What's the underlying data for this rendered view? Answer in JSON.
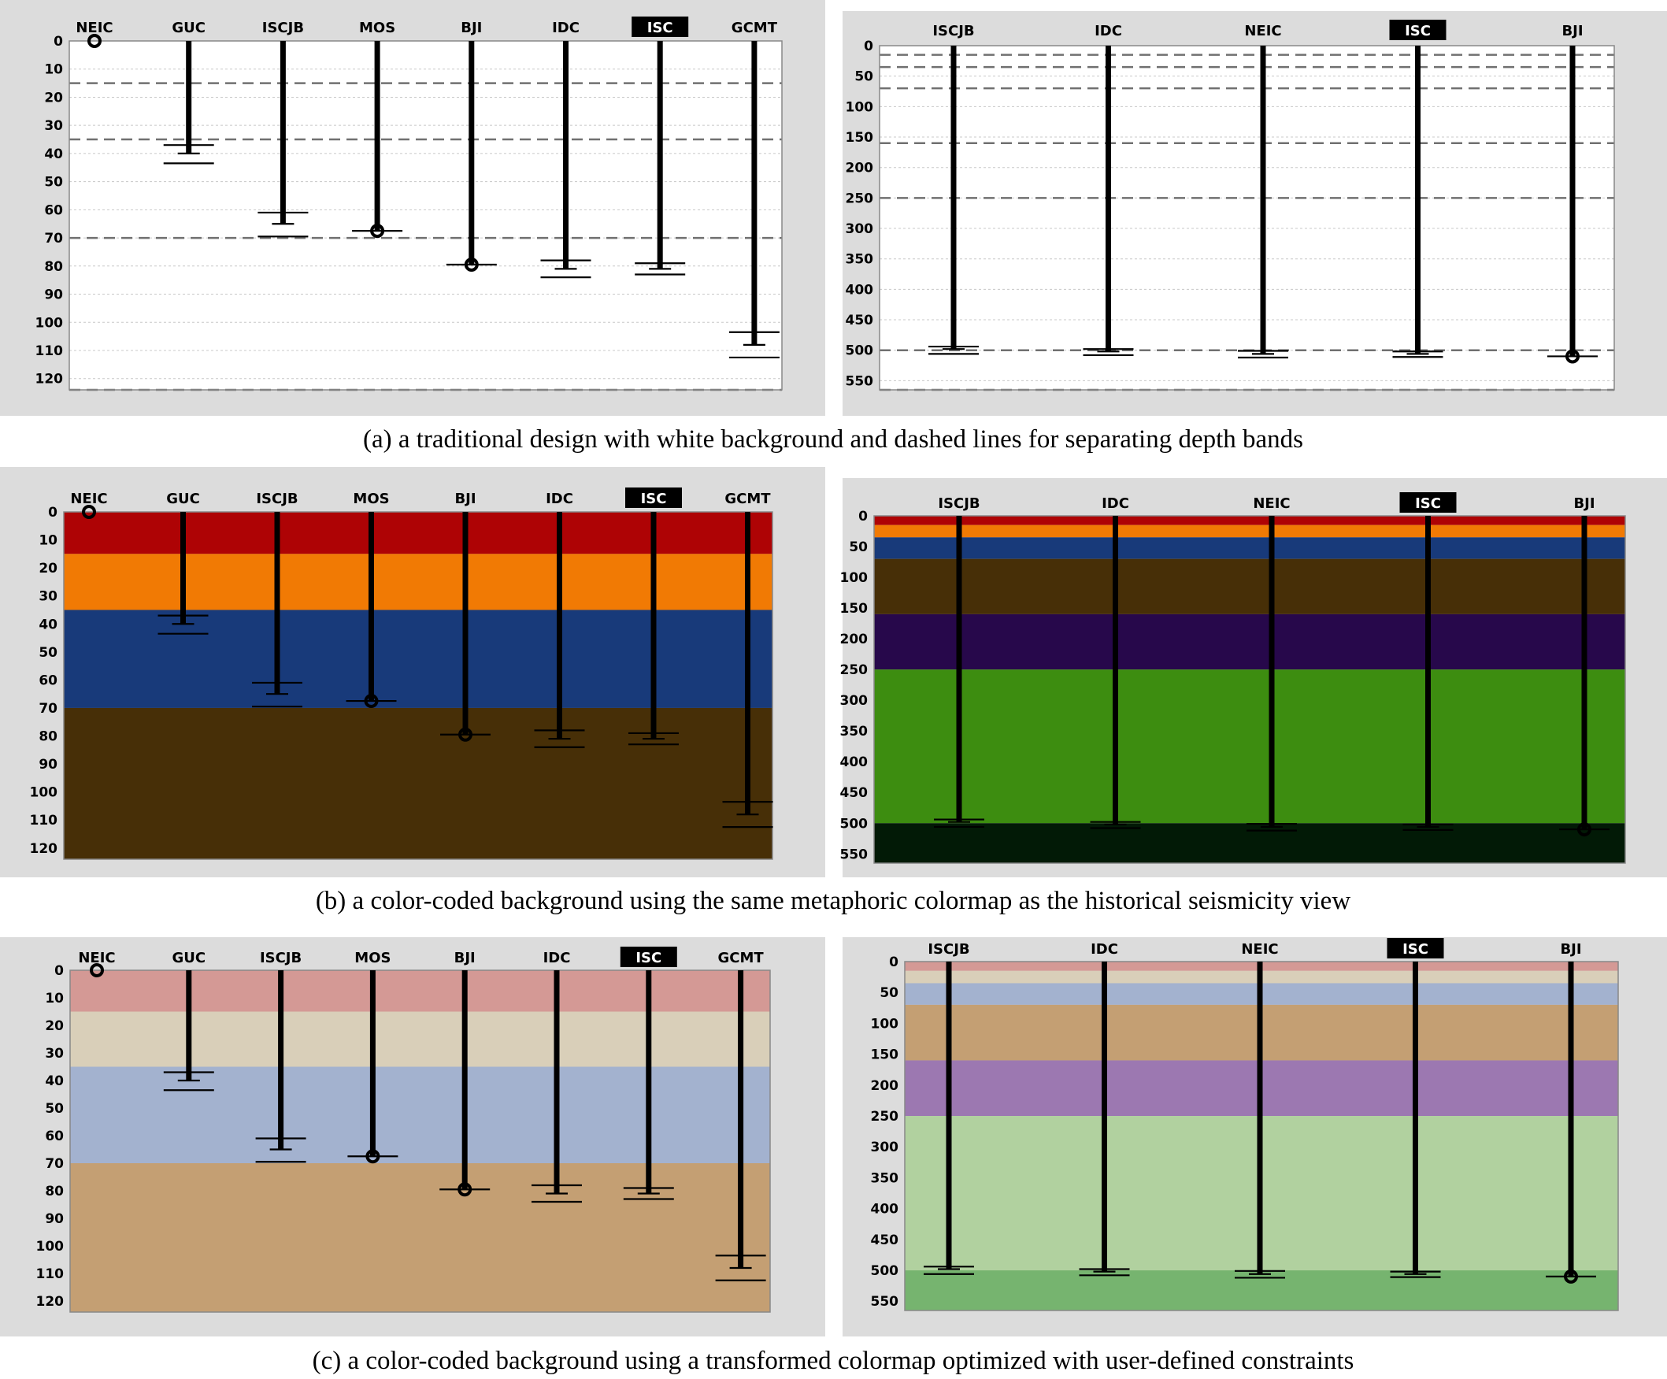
{
  "colormaps": {
    "white": {
      "band_colors": [
        "#ffffff",
        "#ffffff",
        "#ffffff",
        "#ffffff",
        "#ffffff",
        "#ffffff",
        "#ffffff"
      ],
      "dashed_separators": true
    },
    "metaphoric": {
      "band_colors": [
        "#ae0305",
        "#f17a04",
        "#183a7a",
        "#472f07",
        "#27084b",
        "#3d8d10",
        "#021a06"
      ],
      "dashed_separators": false
    },
    "transformed": {
      "band_colors": [
        "#d49995",
        "#d9cfb9",
        "#a3b2cf",
        "#c49f73",
        "#9c78b1",
        "#b1d19f",
        "#76b46f"
      ],
      "dashed_separators": false
    }
  },
  "band_boundaries": [
    15,
    35,
    70,
    160,
    250,
    500
  ],
  "highlight": {
    "agency": "ISC",
    "label_bg": "#000000",
    "label_fg": "#ffffff"
  },
  "panel_bg": "#dcdcdc",
  "chart_data": [
    {
      "type": "depth-range",
      "panel": "a-left",
      "colormap": "white",
      "ylim": [
        0,
        124
      ],
      "yticks": [
        "0",
        "10",
        "20",
        "30",
        "40",
        "50",
        "60",
        "70",
        "80",
        "90",
        "100",
        "110",
        "120"
      ],
      "agencies": [
        {
          "name": "NEIC",
          "depth": 0,
          "dot": true,
          "err": []
        },
        {
          "name": "GUC",
          "depth": 40,
          "dot": false,
          "err": [
            37,
            43.5
          ]
        },
        {
          "name": "ISCJB",
          "depth": 65,
          "dot": false,
          "err": [
            61,
            69.5
          ]
        },
        {
          "name": "MOS",
          "depth": 67.5,
          "dot": true,
          "err": [
            67.5
          ]
        },
        {
          "name": "BJI",
          "depth": 79.5,
          "dot": true,
          "err": [
            79.5
          ]
        },
        {
          "name": "IDC",
          "depth": 81,
          "dot": false,
          "err": [
            78,
            84
          ]
        },
        {
          "name": "ISC",
          "depth": 81,
          "dot": false,
          "err": [
            79,
            83
          ]
        },
        {
          "name": "GCMT",
          "depth": 108,
          "dot": false,
          "err": [
            103.5,
            112.5
          ]
        }
      ]
    },
    {
      "type": "depth-range",
      "panel": "a-right",
      "colormap": "white",
      "ylim": [
        0,
        565
      ],
      "yticks": [
        "0",
        "50",
        "100",
        "150",
        "200",
        "250",
        "300",
        "350",
        "400",
        "450",
        "500",
        "550"
      ],
      "agencies": [
        {
          "name": "ISCJB",
          "depth": 498,
          "dot": false,
          "err": [
            494,
            506
          ]
        },
        {
          "name": "IDC",
          "depth": 502,
          "dot": false,
          "err": [
            498,
            508
          ]
        },
        {
          "name": "NEIC",
          "depth": 506,
          "dot": false,
          "err": [
            501,
            512
          ]
        },
        {
          "name": "ISC",
          "depth": 506,
          "dot": false,
          "err": [
            502,
            511
          ]
        },
        {
          "name": "BJI",
          "depth": 510,
          "dot": true,
          "err": [
            510
          ]
        }
      ]
    },
    {
      "type": "depth-range",
      "panel": "b-left",
      "colormap": "metaphoric",
      "ylim": [
        0,
        124
      ],
      "yticks": [
        "0",
        "10",
        "20",
        "30",
        "40",
        "50",
        "60",
        "70",
        "80",
        "90",
        "100",
        "110",
        "120"
      ],
      "agencies": [
        {
          "name": "NEIC",
          "depth": 0,
          "dot": true,
          "err": []
        },
        {
          "name": "GUC",
          "depth": 40,
          "dot": false,
          "err": [
            37,
            43.5
          ]
        },
        {
          "name": "ISCJB",
          "depth": 65,
          "dot": false,
          "err": [
            61,
            69.5
          ]
        },
        {
          "name": "MOS",
          "depth": 67.5,
          "dot": true,
          "err": [
            67.5
          ]
        },
        {
          "name": "BJI",
          "depth": 79.5,
          "dot": true,
          "err": [
            79.5
          ]
        },
        {
          "name": "IDC",
          "depth": 81,
          "dot": false,
          "err": [
            78,
            84
          ]
        },
        {
          "name": "ISC",
          "depth": 81,
          "dot": false,
          "err": [
            79,
            83
          ]
        },
        {
          "name": "GCMT",
          "depth": 108,
          "dot": false,
          "err": [
            103.5,
            112.5
          ]
        }
      ]
    },
    {
      "type": "depth-range",
      "panel": "b-right",
      "colormap": "metaphoric",
      "ylim": [
        0,
        565
      ],
      "yticks": [
        "0",
        "50",
        "100",
        "150",
        "200",
        "250",
        "300",
        "350",
        "400",
        "450",
        "500",
        "550"
      ],
      "agencies": [
        {
          "name": "ISCJB",
          "depth": 498,
          "dot": false,
          "err": [
            494,
            506
          ]
        },
        {
          "name": "IDC",
          "depth": 502,
          "dot": false,
          "err": [
            498,
            508
          ]
        },
        {
          "name": "NEIC",
          "depth": 506,
          "dot": false,
          "err": [
            501,
            512
          ]
        },
        {
          "name": "ISC",
          "depth": 506,
          "dot": false,
          "err": [
            502,
            511
          ]
        },
        {
          "name": "BJI",
          "depth": 510,
          "dot": true,
          "err": [
            510
          ]
        }
      ]
    },
    {
      "type": "depth-range",
      "panel": "c-left",
      "colormap": "transformed",
      "ylim": [
        0,
        124
      ],
      "yticks": [
        "0",
        "10",
        "20",
        "30",
        "40",
        "50",
        "60",
        "70",
        "80",
        "90",
        "100",
        "110",
        "120"
      ],
      "agencies": [
        {
          "name": "NEIC",
          "depth": 0,
          "dot": true,
          "err": []
        },
        {
          "name": "GUC",
          "depth": 40,
          "dot": false,
          "err": [
            37,
            43.5
          ]
        },
        {
          "name": "ISCJB",
          "depth": 65,
          "dot": false,
          "err": [
            61,
            69.5
          ]
        },
        {
          "name": "MOS",
          "depth": 67.5,
          "dot": true,
          "err": [
            67.5
          ]
        },
        {
          "name": "BJI",
          "depth": 79.5,
          "dot": true,
          "err": [
            79.5
          ]
        },
        {
          "name": "IDC",
          "depth": 81,
          "dot": false,
          "err": [
            78,
            84
          ]
        },
        {
          "name": "ISC",
          "depth": 81,
          "dot": false,
          "err": [
            79,
            83
          ]
        },
        {
          "name": "GCMT",
          "depth": 108,
          "dot": false,
          "err": [
            103.5,
            112.5
          ]
        }
      ]
    },
    {
      "type": "depth-range",
      "panel": "c-right",
      "colormap": "transformed",
      "ylim": [
        0,
        565
      ],
      "yticks": [
        "0",
        "50",
        "100",
        "150",
        "200",
        "250",
        "300",
        "350",
        "400",
        "450",
        "500",
        "550"
      ],
      "agencies": [
        {
          "name": "ISCJB",
          "depth": 498,
          "dot": false,
          "err": [
            494,
            506
          ]
        },
        {
          "name": "IDC",
          "depth": 502,
          "dot": false,
          "err": [
            498,
            508
          ]
        },
        {
          "name": "NEIC",
          "depth": 506,
          "dot": false,
          "err": [
            501,
            512
          ]
        },
        {
          "name": "ISC",
          "depth": 506,
          "dot": false,
          "err": [
            502,
            511
          ]
        },
        {
          "name": "BJI",
          "depth": 510,
          "dot": true,
          "err": [
            510
          ]
        }
      ]
    }
  ],
  "captions": {
    "a": "(a) a traditional design with white background and dashed lines for separating depth bands",
    "b": "(b) a color-coded background using the same metaphoric colormap as the historical seismicity view",
    "c": "(c) a color-coded background using a transformed colormap optimized with user-defined constraints"
  }
}
